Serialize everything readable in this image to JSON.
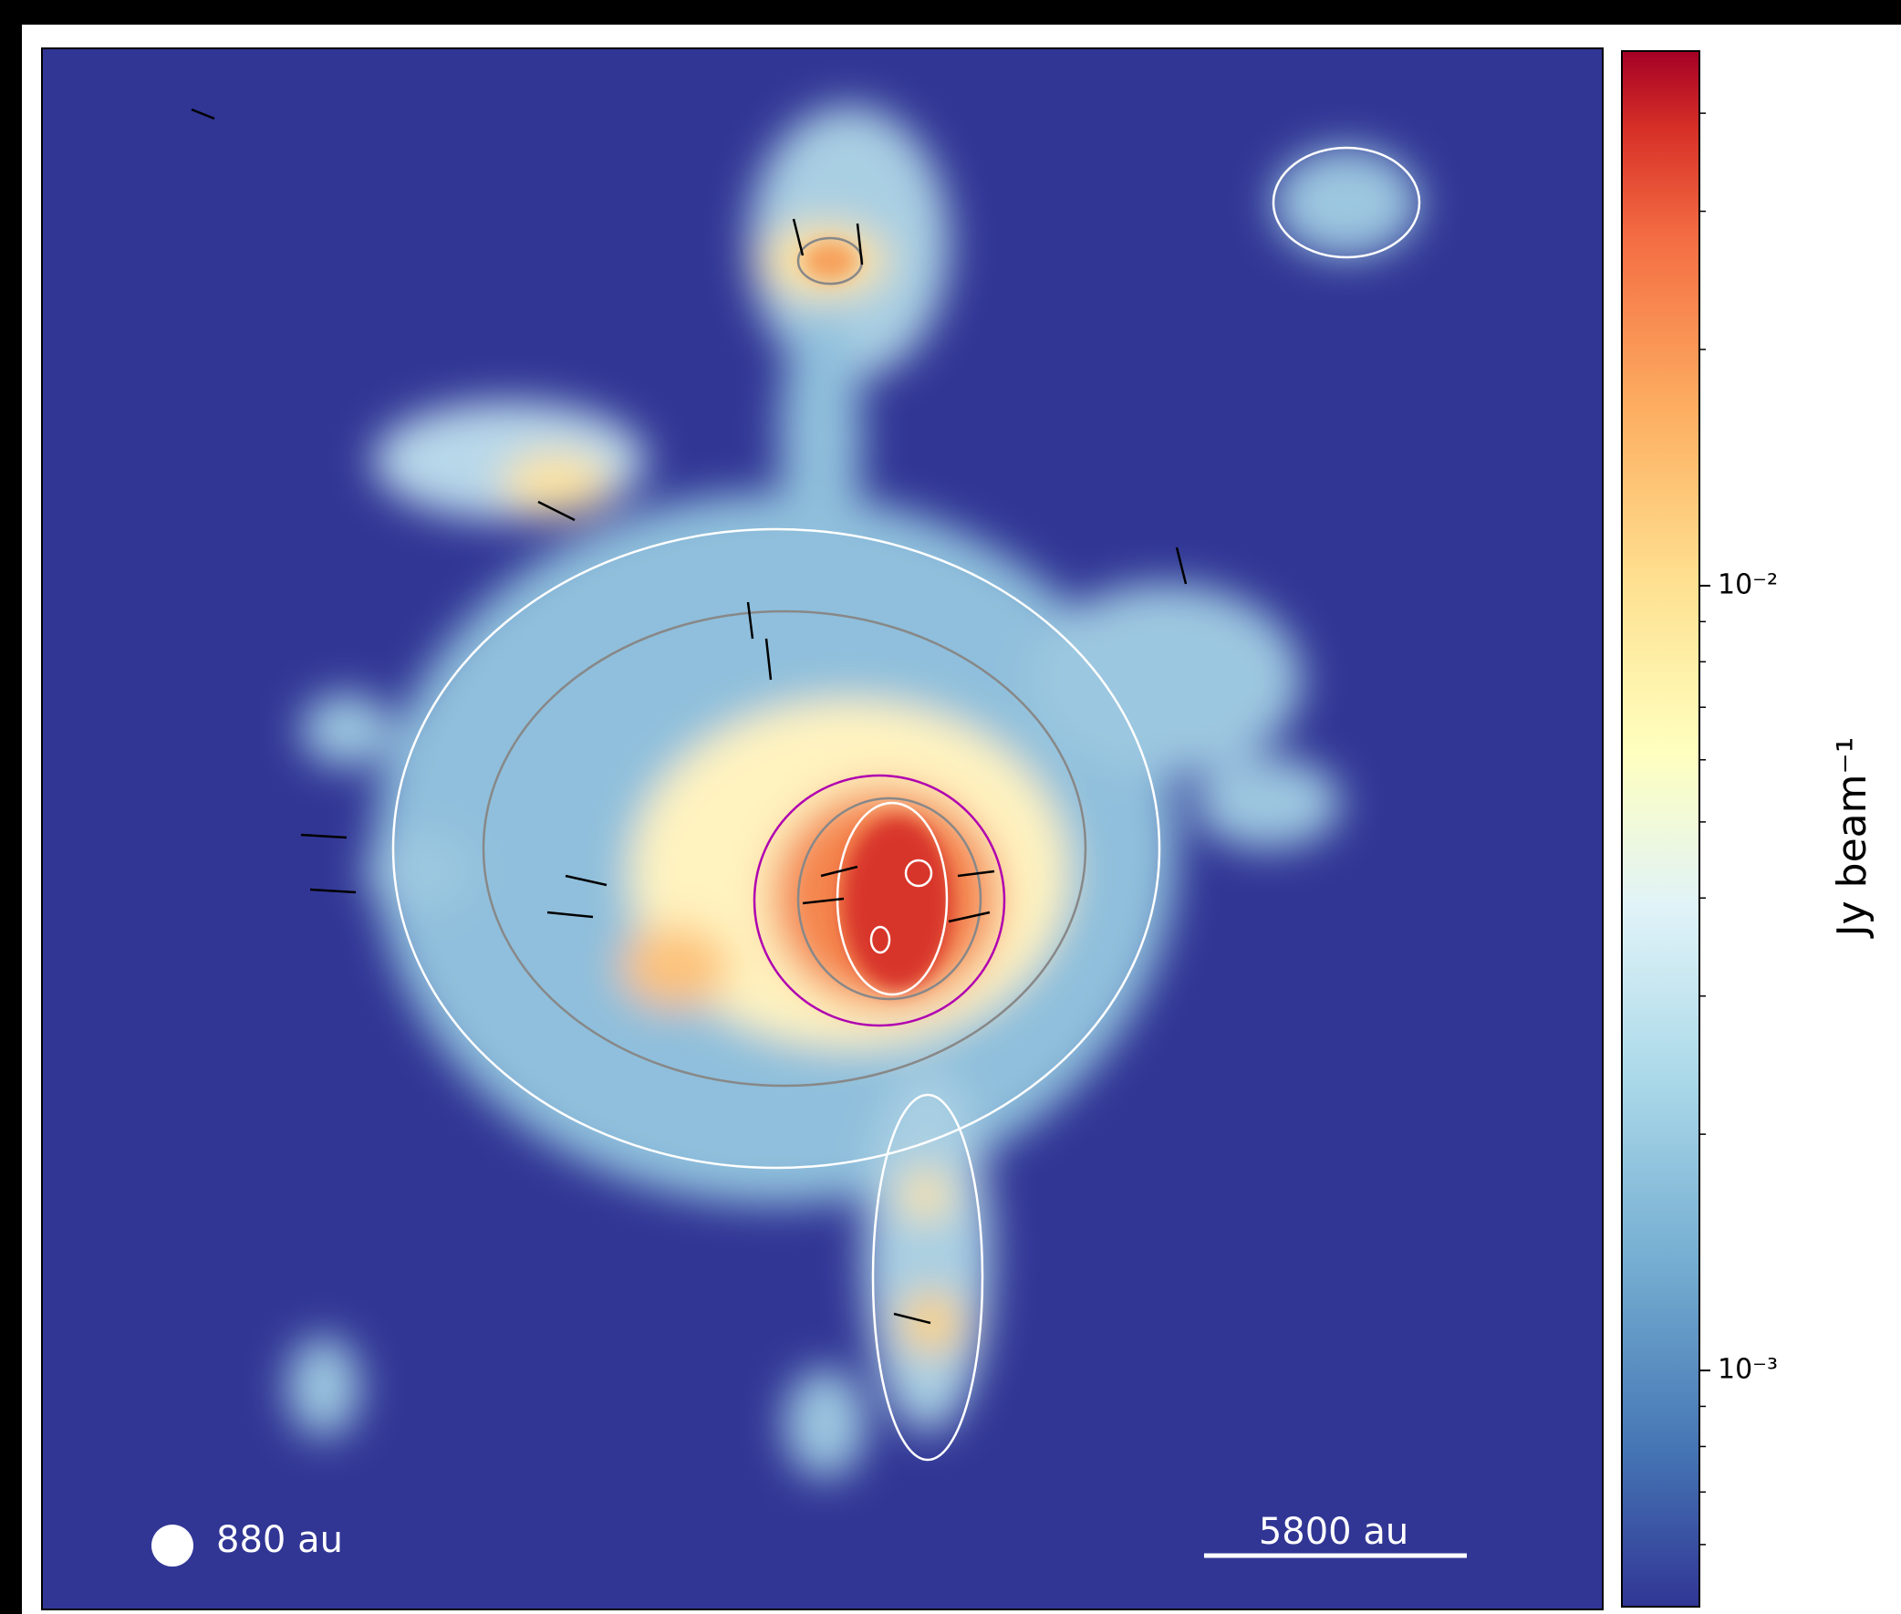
{
  "chart_data": {
    "type": "image",
    "colorbar": {
      "label": "Jy beam⁻¹",
      "log": true,
      "clim": [
        0.0005,
        0.048
      ],
      "ticks": [
        {
          "value": 0.001,
          "label": "10⁻³"
        },
        {
          "value": 0.01,
          "label": "10⁻²"
        }
      ],
      "minor_ticks": [
        0.0006,
        0.0007,
        0.0008,
        0.0009,
        0.002,
        0.003,
        0.004,
        0.005,
        0.006,
        0.007,
        0.008,
        0.009,
        0.02,
        0.03,
        0.04
      ]
    },
    "annotations": {
      "beam": "880 au",
      "scale_bar": "5800 au"
    }
  }
}
